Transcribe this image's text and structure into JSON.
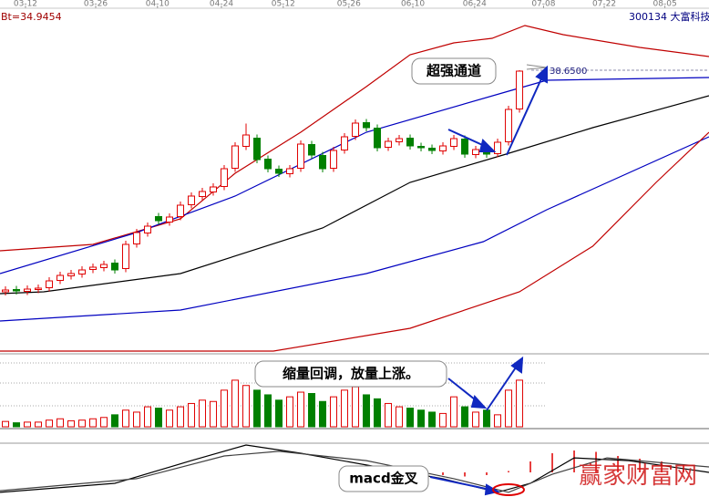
{
  "chart_data": {
    "type": "candlestick",
    "title": "300134 大富科技",
    "subtitle": "Bt=34.9454",
    "x": [
      0,
      1,
      2,
      3,
      4,
      5,
      6,
      7,
      8,
      9,
      10,
      11,
      12,
      13,
      14,
      15,
      16,
      17,
      18,
      19,
      20,
      21,
      22,
      23,
      24,
      25,
      26,
      27,
      28,
      29,
      30,
      31,
      32,
      33,
      34,
      35,
      36,
      37,
      38,
      39,
      40,
      41,
      42,
      43,
      44,
      45,
      46,
      47
    ],
    "open": [
      14.35,
      14.6,
      14.4,
      14.6,
      14.8,
      15.6,
      16.1,
      16.3,
      16.8,
      17.0,
      17.5,
      16.9,
      19.6,
      20.8,
      22.6,
      22.0,
      22.6,
      23.9,
      24.8,
      25.3,
      25.9,
      27.9,
      30.3,
      31.2,
      28.9,
      27.8,
      27.3,
      27.9,
      30.5,
      29.3,
      27.9,
      29.9,
      31.4,
      32.9,
      32.3,
      30.2,
      30.8,
      31.2,
      30.3,
      30.1,
      29.8,
      30.3,
      31.1,
      29.4,
      29.9,
      29.5,
      30.8,
      34.4
    ],
    "close": [
      14.55,
      14.45,
      14.65,
      14.75,
      15.55,
      16.15,
      16.35,
      16.75,
      17.05,
      17.35,
      16.75,
      19.55,
      20.85,
      21.55,
      22.15,
      22.55,
      23.85,
      24.85,
      25.35,
      25.85,
      27.85,
      30.35,
      31.55,
      28.85,
      27.85,
      27.35,
      27.85,
      30.55,
      29.35,
      27.85,
      29.85,
      31.35,
      32.85,
      32.35,
      30.15,
      30.85,
      31.15,
      30.35,
      30.15,
      29.85,
      30.35,
      31.15,
      29.45,
      29.95,
      29.45,
      30.75,
      34.35,
      38.55
    ],
    "high": [
      14.95,
      15.0,
      15.05,
      15.15,
      15.95,
      16.55,
      16.75,
      17.15,
      17.45,
      17.75,
      17.9,
      19.95,
      21.25,
      21.95,
      23.0,
      22.95,
      24.25,
      25.25,
      25.75,
      26.25,
      28.25,
      30.75,
      32.8,
      31.6,
      29.3,
      28.2,
      28.25,
      30.95,
      30.9,
      29.7,
      30.25,
      31.75,
      33.25,
      33.3,
      32.7,
      31.25,
      31.55,
      31.6,
      30.7,
      30.5,
      30.75,
      31.55,
      31.5,
      30.35,
      30.3,
      31.15,
      34.75,
      38.65
    ],
    "low": [
      13.95,
      14.05,
      14.0,
      14.2,
      14.4,
      15.2,
      15.7,
      15.9,
      16.4,
      16.6,
      16.35,
      16.5,
      19.2,
      20.4,
      21.75,
      21.6,
      22.2,
      23.5,
      24.4,
      24.9,
      25.5,
      27.5,
      29.9,
      28.45,
      27.45,
      26.95,
      26.9,
      27.5,
      28.95,
      27.45,
      27.5,
      29.5,
      31.0,
      31.95,
      29.75,
      29.8,
      30.4,
      29.95,
      29.75,
      29.45,
      29.4,
      29.9,
      29.05,
      29.0,
      29.05,
      29.1,
      30.4,
      34.0
    ],
    "volume": [
      8,
      6,
      7,
      7,
      10,
      12,
      9,
      10,
      12,
      14,
      18,
      25,
      22,
      30,
      28,
      25,
      30,
      35,
      40,
      38,
      55,
      70,
      62,
      55,
      48,
      40,
      45,
      52,
      50,
      38,
      45,
      55,
      60,
      48,
      42,
      35,
      30,
      28,
      25,
      22,
      20,
      45,
      30,
      22,
      25,
      18,
      55,
      70
    ],
    "up_color": "#e00000",
    "down_color": "#008000",
    "xlim": [
      -0.5,
      64.33
    ],
    "ylim": [
      7.35,
      45.15
    ],
    "volume_ylim": [
      0,
      100
    ],
    "xticks": [
      {
        "value": 1.83,
        "label": "03-12"
      },
      {
        "value": 8.25,
        "label": "03-26"
      },
      {
        "value": 13.9,
        "label": "04-10"
      },
      {
        "value": 19.75,
        "label": "04-24"
      },
      {
        "value": 25.4,
        "label": "05-12"
      },
      {
        "value": 31.4,
        "label": "05-26"
      },
      {
        "value": 37.25,
        "label": "06-10"
      },
      {
        "value": 42.9,
        "label": "06-24"
      },
      {
        "value": 49.2,
        "label": "07-08"
      },
      {
        "value": 54.75,
        "label": "07-22"
      },
      {
        "value": 60.3,
        "label": "08-05"
      }
    ],
    "lines": [
      {
        "color": "#c00000",
        "x": [
          -0.5,
          8,
          16,
          21,
          27,
          33,
          37,
          41,
          44.5,
          47.5,
          51,
          58,
          64.33
        ],
        "values": [
          18.85,
          19.55,
          22.35,
          27.35,
          31.85,
          36.85,
          40.35,
          41.65,
          42.15,
          43.55,
          42.55,
          41.15,
          40.15
        ]
      },
      {
        "color": "#0000c0",
        "x": [
          -0.5,
          12,
          21,
          33,
          46,
          49.5,
          64.33
        ],
        "values": [
          16.35,
          20.85,
          24.85,
          31.85,
          36.35,
          37.55,
          37.85
        ]
      },
      {
        "color": "#000000",
        "x": [
          -0.5,
          3.5,
          16,
          29,
          37,
          45.5,
          53.7,
          64.33
        ],
        "values": [
          14.15,
          14.35,
          16.35,
          21.35,
          26.35,
          29.35,
          32.35,
          35.85
        ]
      },
      {
        "color": "#0000c0",
        "x": [
          -0.5,
          16,
          33,
          43.7,
          49.5,
          64.33
        ],
        "values": [
          11.15,
          12.35,
          16.35,
          19.85,
          23.35,
          31.35
        ]
      },
      {
        "color": "#c00000",
        "x": [
          -0.5,
          24.5,
          37,
          47,
          53.7,
          59.5,
          64.33
        ],
        "values": [
          7.85,
          7.85,
          10.35,
          14.35,
          19.35,
          26.35,
          31.85
        ]
      }
    ],
    "price_label": {
      "value": 38.65,
      "label": "38.6500"
    },
    "annotations": [
      "超强通道",
      "缩量回调，放量上涨。",
      "macd金叉"
    ],
    "watermark": "赢家财富网",
    "macd": {
      "ylim": [
        -1,
        1
      ],
      "lines": [
        {
          "color": "#000000",
          "x": [
            -0.5,
            10,
            17,
            22,
            27,
            33,
            40,
            45,
            48,
            52,
            57,
            64.33
          ],
          "values": [
            -0.73,
            -0.4,
            0.43,
            1.0,
            0.7,
            0.27,
            -0.23,
            -0.73,
            -0.4,
            0.53,
            0.43,
            0
          ]
        },
        {
          "color": "#404040",
          "x": [
            -0.5,
            12,
            20,
            25,
            33,
            41,
            46,
            50,
            55,
            64.33
          ],
          "values": [
            -0.67,
            -0.23,
            0.6,
            0.77,
            0.43,
            -0.23,
            -0.73,
            -0.07,
            0.53,
            0.2
          ]
        }
      ],
      "histogram": {
        "color": "#e00000",
        "x": [
          40,
          42,
          44,
          46,
          48,
          50,
          52,
          54,
          56,
          58,
          60,
          62
        ],
        "values": [
          -0.1,
          -0.15,
          -0.1,
          0.05,
          0.4,
          0.7,
          0.8,
          0.75,
          0.6,
          0.5,
          0.4,
          0.3
        ]
      }
    }
  }
}
